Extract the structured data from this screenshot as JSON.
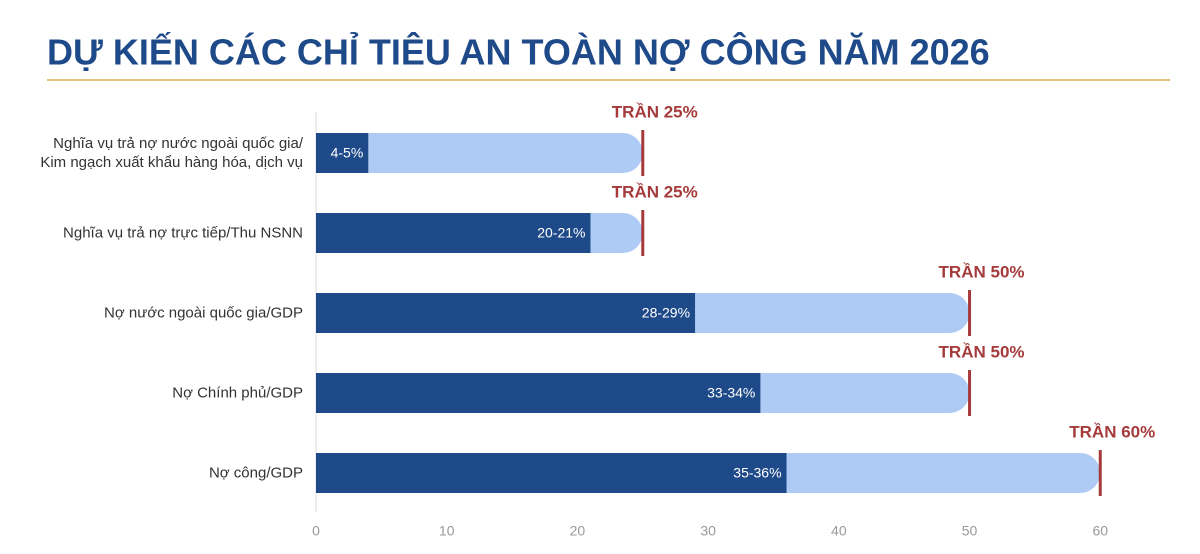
{
  "chart_data": {
    "type": "bar",
    "orientation": "horizontal",
    "title": "DỰ KIẾN CÁC CHỈ TIÊU AN TOÀN NỢ CÔNG NĂM 2026",
    "categories": [
      "Nghĩa vụ trả nợ nước ngoài quốc gia/ Kim ngạch xuất khẩu hàng hóa, dịch vụ",
      "Nghĩa vụ trả nợ trực tiếp/Thu NSNN",
      "Nợ nước ngoài quốc gia/GDP",
      "Nợ Chính phủ/GDP",
      "Nợ công/GDP"
    ],
    "values": [
      4,
      21,
      29,
      34,
      36
    ],
    "value_labels": [
      "4-5%",
      "20-21%",
      "28-29%",
      "33-34%",
      "35-36%"
    ],
    "color": "#1f4a8a",
    "ceilings": [
      25,
      25,
      50,
      50,
      60
    ],
    "ceiling_labels": [
      "TRẦN 25%",
      "TRẦN 25%",
      "TRẦN 50%",
      "TRẦN 50%",
      "TRẦN 60%"
    ],
    "ceiling_bar_color": "#aecbf5",
    "ceiling_line_color": "#a53a3a",
    "xlim": [
      0,
      65
    ],
    "xticks": [
      0,
      10,
      20,
      30,
      40,
      50,
      60
    ]
  }
}
